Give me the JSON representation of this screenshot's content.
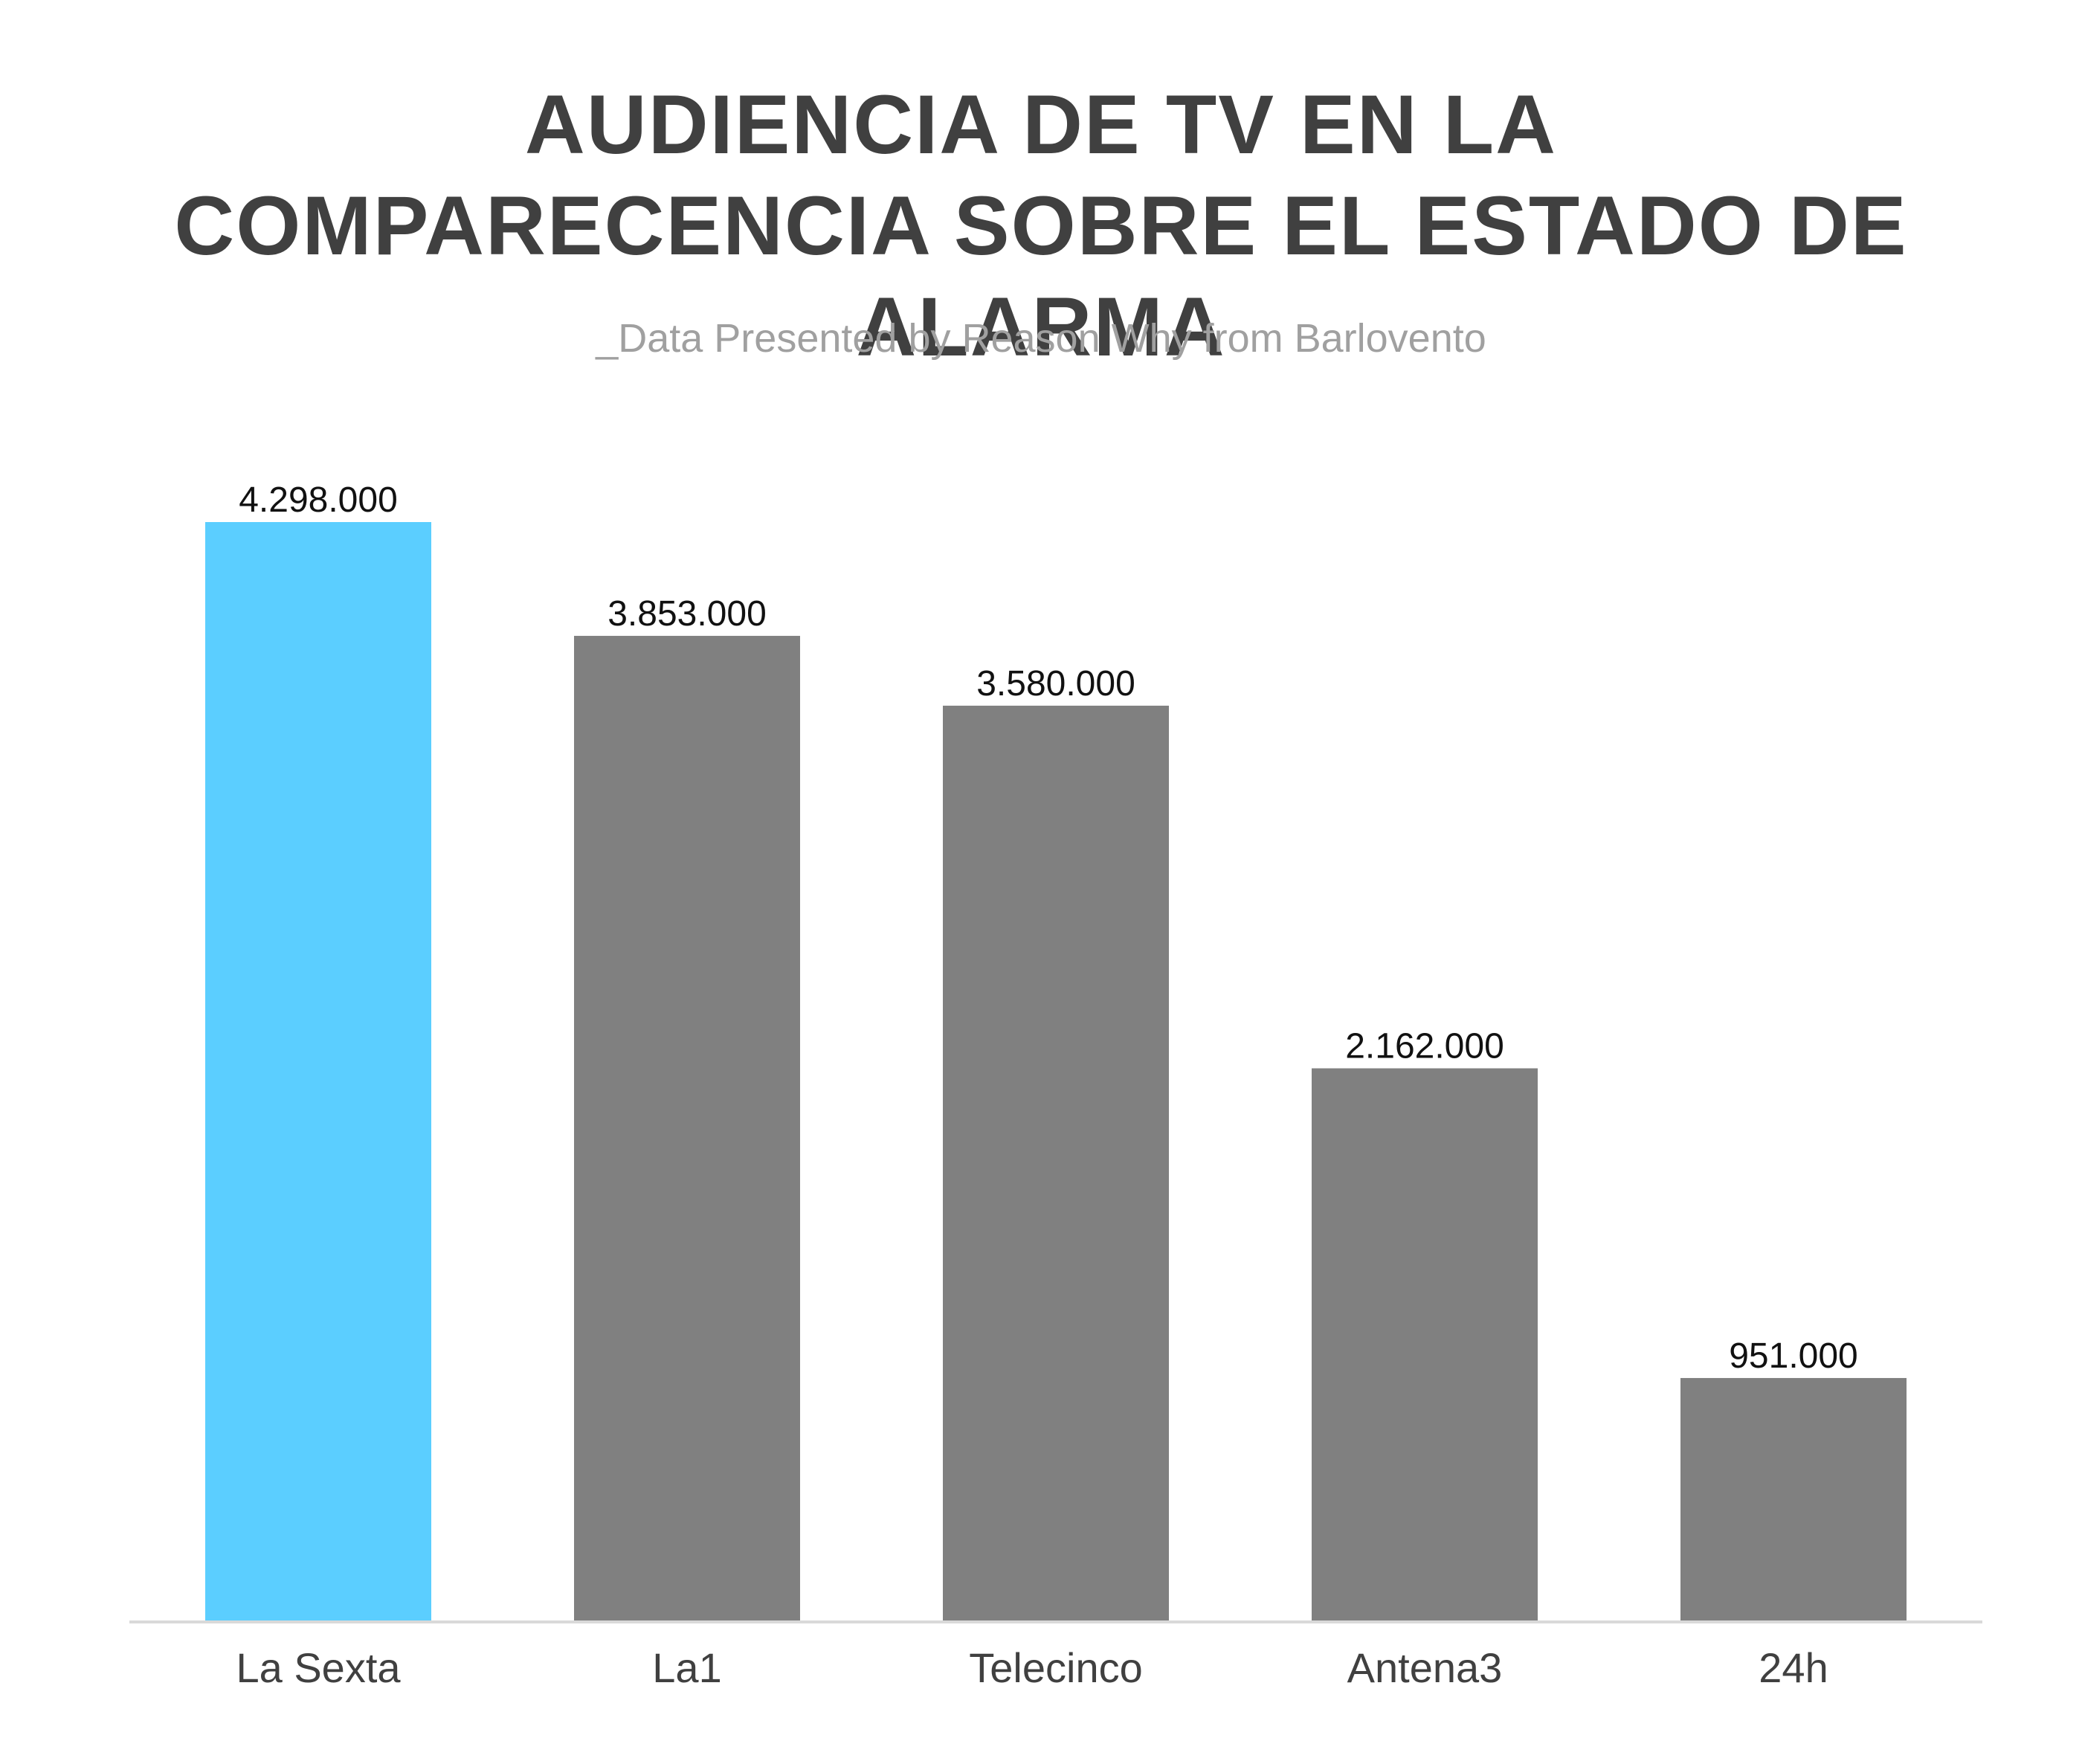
{
  "title": "AUDIENCIA DE TV EN LA COMPARECENCIA SOBRE EL ESTADO DE ALARMA",
  "subtitle": "_Data Presented by Reason Why from Barlovento",
  "chart_data": {
    "type": "bar",
    "categories": [
      "La Sexta",
      "La1",
      "Telecinco",
      "Antena3",
      "24h"
    ],
    "values": [
      4298000,
      3853000,
      3580000,
      2162000,
      951000
    ],
    "value_labels": [
      "4.298.000",
      "3.853.000",
      "3.580.000",
      "2.162.000",
      "951.000"
    ],
    "bar_colors": [
      "#5BCEFF",
      "#808080",
      "#808080",
      "#808080",
      "#808080"
    ],
    "ylim": [
      0,
      4298000
    ],
    "grid": false,
    "axis_color": "#d9d9d9"
  }
}
